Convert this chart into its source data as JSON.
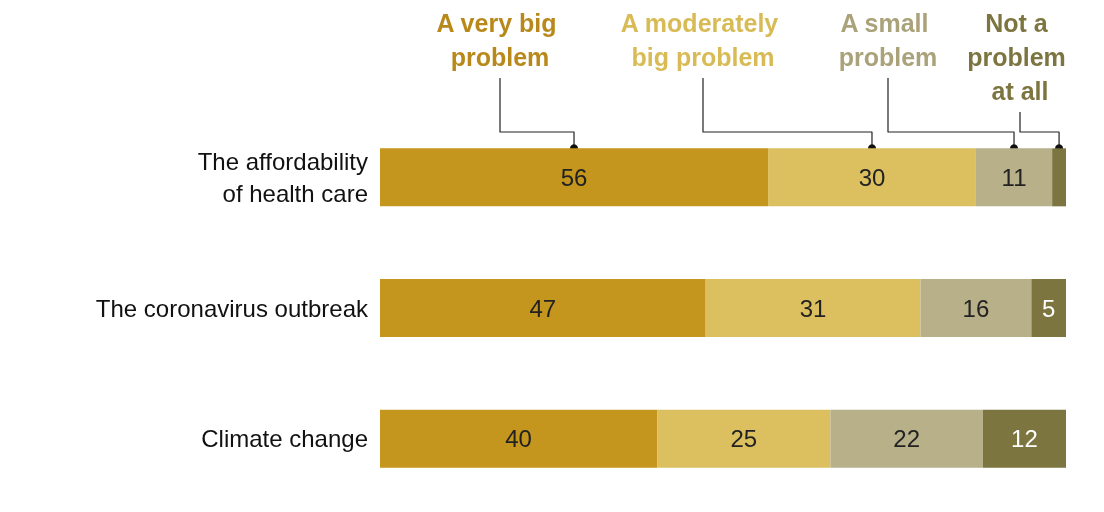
{
  "chart_data": {
    "type": "bar",
    "orientation": "horizontal",
    "stacked": true,
    "legend": "top",
    "categories": [
      "The affordability\nof health care",
      "The coronavirus outbreak",
      "Climate change"
    ],
    "series": [
      {
        "name": "A very big problem",
        "color": "#c4961d",
        "values": [
          56,
          47,
          40
        ],
        "value_labels": [
          "56",
          "47",
          "40"
        ]
      },
      {
        "name": "A moderately big problem",
        "color": "#dcc060",
        "values": [
          30,
          31,
          25
        ],
        "value_labels": [
          "30",
          "31",
          "25"
        ]
      },
      {
        "name": "A small problem",
        "color": "#b8b088",
        "values": [
          11,
          16,
          22
        ],
        "value_labels": [
          "11",
          "16",
          "22"
        ]
      },
      {
        "name": "Not a problem at all",
        "color": "#7d7540",
        "values": [
          2,
          5,
          12
        ],
        "value_labels": [
          null,
          "5",
          "12"
        ]
      }
    ]
  }
}
